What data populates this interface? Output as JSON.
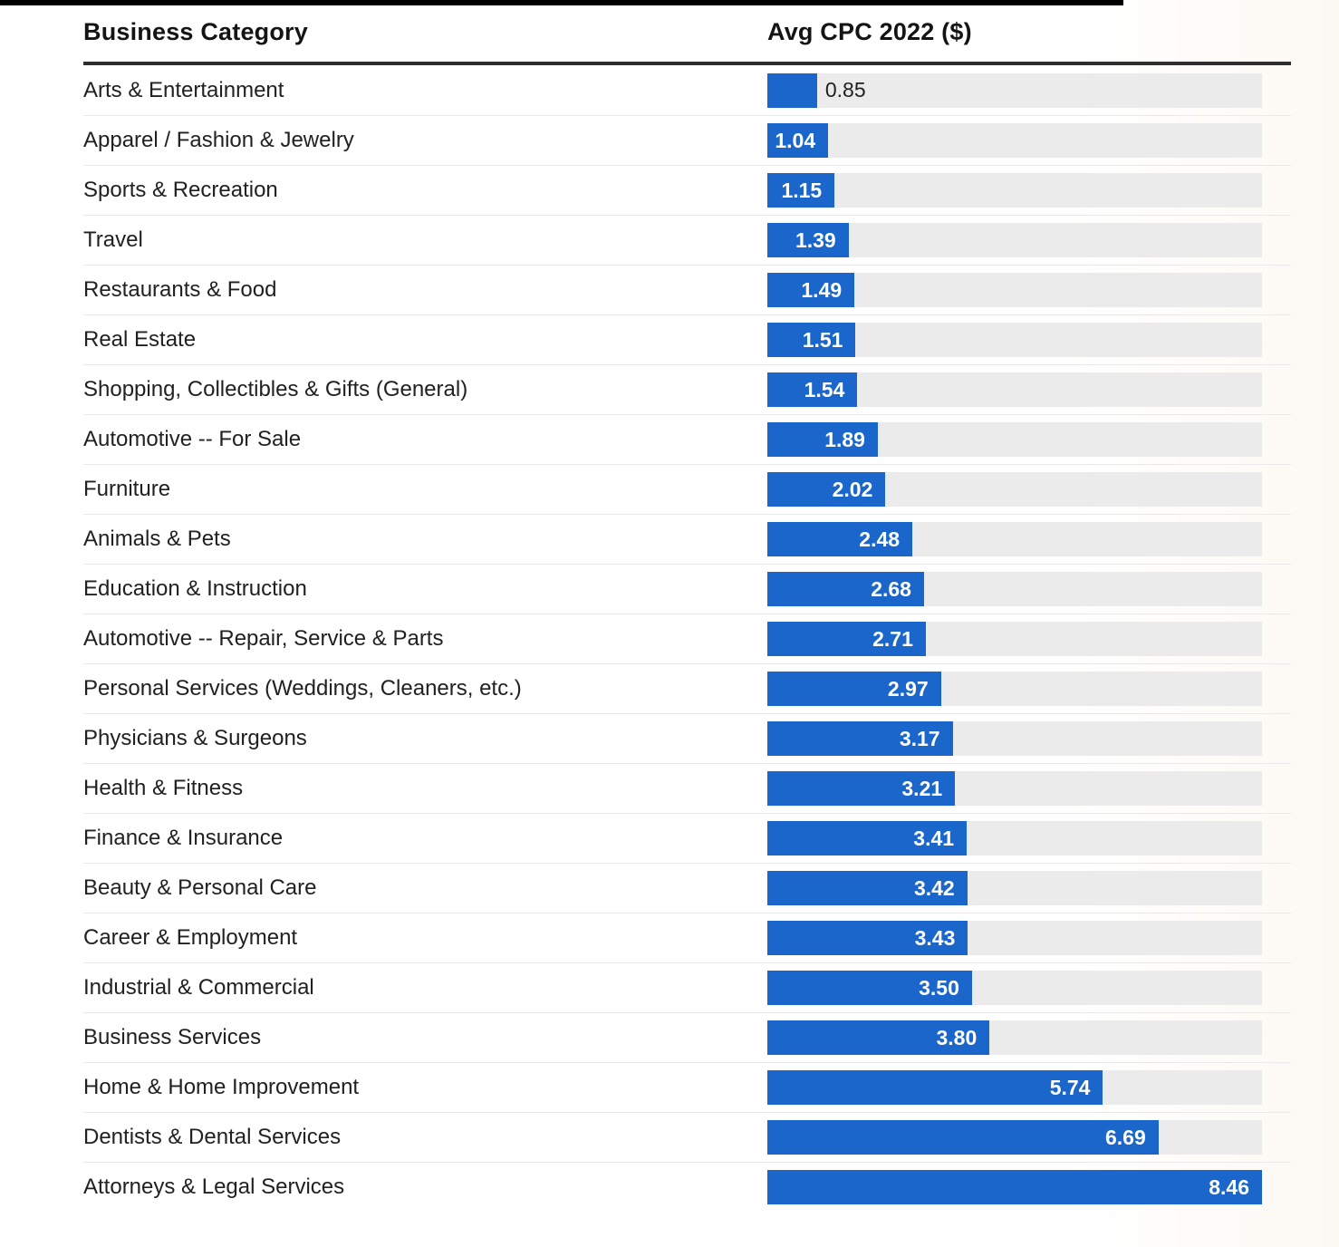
{
  "page": {
    "top_edge_bar_color": "#000000",
    "background_color": "#ffffff"
  },
  "table": {
    "columns": [
      {
        "label": "Business Category"
      },
      {
        "label": "Avg CPC 2022 ($)"
      }
    ]
  },
  "chart_data": {
    "type": "bar",
    "orientation": "horizontal",
    "title": "Avg CPC 2022 ($) by Business Category",
    "xlabel": "Avg CPC 2022 ($)",
    "ylabel": "Business Category",
    "xlim": [
      0,
      8.46
    ],
    "grid": false,
    "legend": false,
    "bar_color": "#1b66cb",
    "track_color": "#ebebeb",
    "categories": [
      "Arts & Entertainment",
      "Apparel / Fashion & Jewelry",
      "Sports & Recreation",
      "Travel",
      "Restaurants & Food",
      "Real Estate",
      "Shopping, Collectibles & Gifts (General)",
      "Automotive -- For Sale",
      "Furniture",
      "Animals & Pets",
      "Education & Instruction",
      "Automotive -- Repair, Service & Parts",
      "Personal Services (Weddings, Cleaners, etc.)",
      "Physicians & Surgeons",
      "Health & Fitness",
      "Finance & Insurance",
      "Beauty & Personal Care",
      "Career & Employment",
      "Industrial & Commercial",
      "Business Services",
      "Home & Home Improvement",
      "Dentists & Dental Services",
      "Attorneys & Legal Services"
    ],
    "values": [
      0.85,
      1.04,
      1.15,
      1.39,
      1.49,
      1.51,
      1.54,
      1.89,
      2.02,
      2.48,
      2.68,
      2.71,
      2.97,
      3.17,
      3.21,
      3.41,
      3.42,
      3.43,
      3.5,
      3.8,
      5.74,
      6.69,
      8.46
    ],
    "value_labels": [
      "0.85",
      "1.04",
      "1.15",
      "1.39",
      "1.49",
      "1.51",
      "1.54",
      "1.89",
      "2.02",
      "2.48",
      "2.68",
      "2.71",
      "2.97",
      "3.17",
      "3.21",
      "3.41",
      "3.42",
      "3.43",
      "3.50",
      "3.80",
      "5.74",
      "6.69",
      "8.46"
    ]
  }
}
